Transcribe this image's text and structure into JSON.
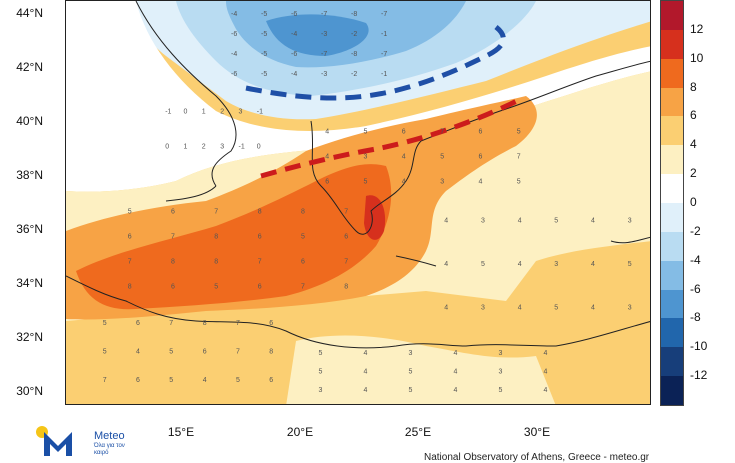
{
  "map": {
    "lat_labels": [
      "44°N",
      "42°N",
      "40°N",
      "38°N",
      "36°N",
      "34°N",
      "32°N",
      "30°N"
    ],
    "lon_labels": [
      "15°E",
      "20°E",
      "25°E",
      "30°E"
    ],
    "grid_values": {
      "north_balkans": [
        "-4",
        "-5",
        "-6",
        "-7",
        "-8",
        "-7",
        "-6",
        "-5",
        "-4",
        "-3",
        "-2",
        "-1"
      ],
      "italy_south": [
        "-1",
        "0",
        "1",
        "2",
        "3"
      ],
      "greece_aegean": [
        "4",
        "5",
        "6",
        "7",
        "6",
        "5",
        "4",
        "3"
      ],
      "ionian_sea": [
        "5",
        "6",
        "7",
        "8",
        "8",
        "7",
        "6",
        "7",
        "8",
        "6"
      ],
      "libya_coast": [
        "5",
        "6",
        "7",
        "8",
        "7",
        "6",
        "5",
        "4"
      ],
      "egypt_turkey": [
        "4",
        "3",
        "4",
        "5",
        "4",
        "3",
        "4",
        "5"
      ],
      "sahara": [
        "5",
        "4",
        "3",
        "4",
        "3",
        "4",
        "5",
        "4"
      ]
    }
  },
  "annotations": {
    "blue_dashed_line": "cold-front-boundary",
    "red_dashed_line": "warm-anomaly-boundary"
  },
  "colorbar": {
    "labels": [
      "12",
      "10",
      "8",
      "6",
      "4",
      "2",
      "0",
      "-2",
      "-4",
      "-6",
      "-8",
      "-10",
      "-12"
    ],
    "colors": [
      "#b2182b",
      "#d6301d",
      "#ef6a1e",
      "#f7a345",
      "#fbcf72",
      "#fdf0c2",
      "#ffffff",
      "#e0f0fa",
      "#b9dcf2",
      "#84bce5",
      "#4e95d0",
      "#2166ac",
      "#173e7a",
      "#0b2256"
    ]
  },
  "logo": {
    "name": "Meteo",
    "tagline": "Όλα για τον καιρό",
    "colors": {
      "blue": "#1a4fa6",
      "yellow": "#f5c518"
    }
  },
  "credit": "National Observatory of Athens, Greece - meteo.gr"
}
